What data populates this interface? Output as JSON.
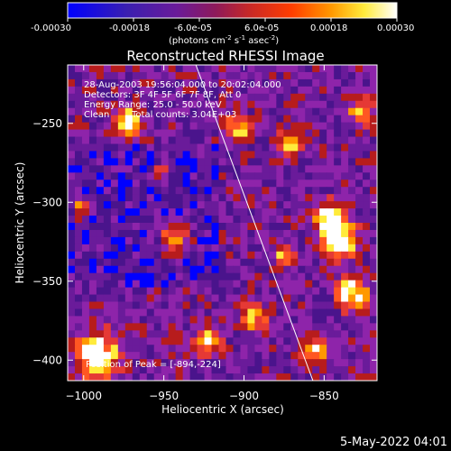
{
  "colorbar": {
    "ticks": [
      "-0.00030",
      "-0.00018",
      "-6.0e-05",
      "6.0e-05",
      "0.00018",
      "0.00030"
    ],
    "units_main": "(photons cm",
    "units_exp1": "-2",
    "units_mid1": " s",
    "units_exp2": "-1",
    "units_mid2": " asec",
    "units_exp3": "-2",
    "units_end": ")"
  },
  "annotations": {
    "line1": "28-Aug-2003 19:56:04.000 to 20:02:04.000",
    "line2": "Detectors: 3F 4F 5F 6F 7F 8F, Att 0",
    "line3": "Energy Range: 25.0 - 50.0 keV",
    "line4a": "Clean",
    "line4b": "Total counts: 3.04E+03",
    "peak": "Position of Peak = [-894,-224]"
  },
  "footer": {
    "date": "5-May-2022 04:01"
  },
  "chart_data": {
    "type": "heatmap",
    "title": "Reconstructed RHESSI Image",
    "xlabel": "Heliocentric X (arcsec)",
    "ylabel": "Heliocentric Y (arcsec)",
    "xlim": [
      -1010,
      -817
    ],
    "ylim": [
      -413,
      -213
    ],
    "x_ticks": [
      -1000,
      -950,
      -900,
      -850
    ],
    "y_ticks": [
      -250,
      -300,
      -350,
      -400
    ],
    "x_tick_labels": [
      "−1000",
      "−950",
      "−900",
      "−850"
    ],
    "y_tick_labels": [
      "−250",
      "−300",
      "−350",
      "−400"
    ],
    "colormap": [
      "#0000ff",
      "#4a148c",
      "#6a1b9a",
      "#8e24aa",
      "#b71c1c",
      "#e53935",
      "#ff5722",
      "#ff9800",
      "#ffeb3b",
      "#ffffff"
    ],
    "value_range": [
      -0.0003,
      0.0003
    ],
    "limb_line": [
      [
        -930,
        -213
      ],
      [
        -857,
        -413
      ]
    ],
    "grid": false
  }
}
